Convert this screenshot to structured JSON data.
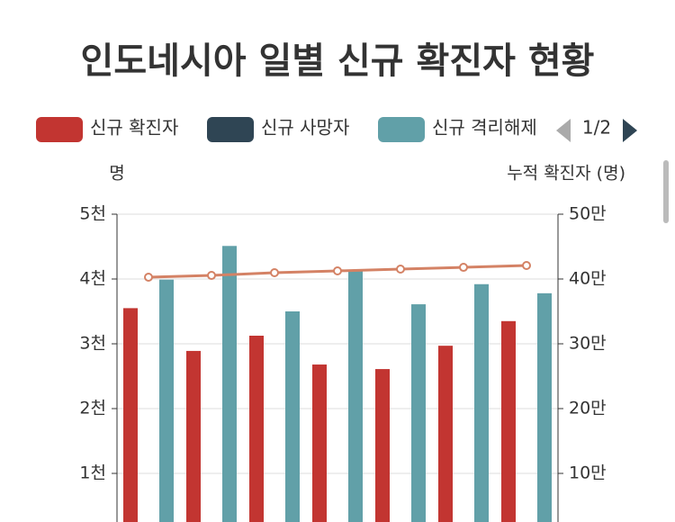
{
  "chart_data": {
    "type": "bar",
    "title": "인도네시아 일별 신규 확진자 현황",
    "categories": [
      null,
      null,
      null,
      null,
      null,
      null,
      null
    ],
    "series": [
      {
        "name": "신규 확진자",
        "color": "#c23531",
        "values": [
          3550,
          2890,
          3125,
          2680,
          2610,
          2970,
          3350
        ]
      },
      {
        "name": "신규 사망자",
        "color": "#2f4554",
        "values": [
          null,
          null,
          null,
          null,
          null,
          null,
          null
        ]
      },
      {
        "name": "신규 격리해제",
        "color": "#61a0a8",
        "values": [
          3990,
          4510,
          3500,
          4140,
          3610,
          3920,
          3780
        ]
      },
      {
        "name": "누적 확진자",
        "type": "line",
        "axis": "y2",
        "color": "#d48265",
        "values": [
          402800,
          405500,
          409700,
          412500,
          415300,
          418000,
          420800
        ]
      }
    ],
    "legend_count": 3,
    "legend_page": "1/2",
    "y_label": "명",
    "y2_label": "누적 확진자 (명)",
    "ylim": [
      0,
      5000
    ],
    "yticks": [
      {
        "value": 1000,
        "label": "1천"
      },
      {
        "value": 2000,
        "label": "2천"
      },
      {
        "value": 3000,
        "label": "3천"
      },
      {
        "value": 4000,
        "label": "4천"
      },
      {
        "value": 5000,
        "label": "5천"
      }
    ],
    "y2lim": [
      0,
      500000
    ],
    "y2ticks": [
      {
        "value": 100000,
        "label": "10만"
      },
      {
        "value": 200000,
        "label": "20만"
      },
      {
        "value": 300000,
        "label": "30만"
      },
      {
        "value": 400000,
        "label": "40만"
      },
      {
        "value": 500000,
        "label": "50만"
      }
    ],
    "grid": true
  }
}
